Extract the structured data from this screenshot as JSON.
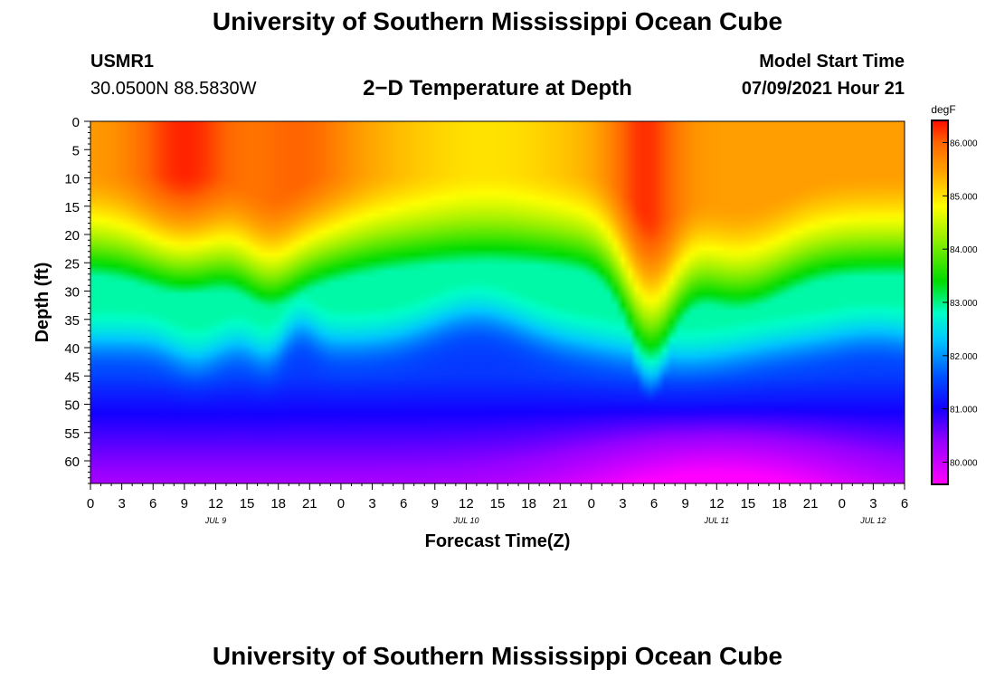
{
  "header": {
    "title_top": "University of Southern Mississippi Ocean Cube",
    "station_id": "USMR1",
    "station_coords": "30.0500N  88.5830W",
    "subtitle": "2−D Temperature at Depth",
    "model_label": "Model Start Time",
    "model_time": "07/09/2021 Hour 21",
    "title_bottom": "University of Southern Mississippi Ocean Cube"
  },
  "chart_data": {
    "type": "heatmap",
    "title": "2−D Temperature at Depth",
    "xlabel": "Forecast Time(Z)",
    "ylabel": "Depth (ft)",
    "x_unit": "forecast hours from Jul 9 00Z",
    "xlim": [
      0,
      78
    ],
    "ylim": [
      0,
      64
    ],
    "x_ticks": [
      0,
      3,
      6,
      9,
      12,
      15,
      18,
      21,
      24,
      27,
      30,
      33,
      36,
      39,
      42,
      45,
      48,
      51,
      54,
      57,
      60,
      63,
      66,
      69,
      72,
      75,
      78
    ],
    "x_tick_labels": [
      "0",
      "3",
      "6",
      "9",
      "12",
      "15",
      "18",
      "21",
      "0",
      "3",
      "6",
      "9",
      "12",
      "15",
      "18",
      "21",
      "0",
      "3",
      "6",
      "9",
      "12",
      "15",
      "18",
      "21",
      "0",
      "3",
      "6"
    ],
    "date_labels": [
      {
        "hour": 12,
        "label": "JUL 9"
      },
      {
        "hour": 36,
        "label": "JUL 10"
      },
      {
        "hour": 60,
        "label": "JUL 11"
      },
      {
        "hour": 75,
        "label": "JUL 12"
      }
    ],
    "y_ticks": [
      0,
      5,
      10,
      15,
      20,
      25,
      30,
      35,
      40,
      45,
      50,
      55,
      60
    ],
    "colorbar": {
      "unit": "degF",
      "min": 79.6,
      "max": 86.4,
      "tick_values": [
        86,
        85,
        84,
        83,
        82,
        81,
        80
      ],
      "tick_labels": [
        "86.000",
        "85.000",
        "84.000",
        "83.000",
        "82.000",
        "81.000",
        "80.000"
      ]
    },
    "field_summary": {
      "surface_warm_core_hours": [
        6,
        10,
        27,
        53
      ],
      "surface_max_degF": 86.3,
      "depth_84F_ft_range": [
        22,
        27
      ],
      "depth_82F_ft_range": [
        38,
        44
      ],
      "bottom_min_degF": 79.6
    }
  }
}
